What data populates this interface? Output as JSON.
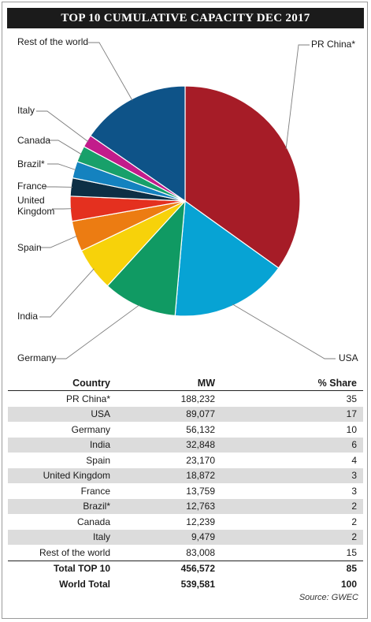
{
  "title": "TOP 10 CUMULATIVE CAPACITY DEC 2017",
  "chart_data": {
    "type": "pie",
    "title": "TOP 10 CUMULATIVE CAPACITY DEC 2017",
    "unit": "MW",
    "slices": [
      {
        "label": "PR China*",
        "value": 188232,
        "color": "#a61c27"
      },
      {
        "label": "USA",
        "value": 89077,
        "color": "#07a3d4"
      },
      {
        "label": "Germany",
        "value": 56132,
        "color": "#109a63"
      },
      {
        "label": "India",
        "value": 32848,
        "color": "#f7d20a"
      },
      {
        "label": "Spain",
        "value": 23170,
        "color": "#ec7c12"
      },
      {
        "label": "United Kingdom",
        "value": 18872,
        "color": "#e4301f"
      },
      {
        "label": "France",
        "value": 13759,
        "color": "#0d2f45"
      },
      {
        "label": "Brazil*",
        "value": 12763,
        "color": "#1482bf"
      },
      {
        "label": "Canada",
        "value": 12239,
        "color": "#18a06a"
      },
      {
        "label": "Italy",
        "value": 9479,
        "color": "#c21c8b"
      },
      {
        "label": "Rest of the world",
        "value": 83008,
        "color": "#0e5388"
      }
    ]
  },
  "table": {
    "headers": [
      "Country",
      "MW",
      "% Share"
    ],
    "rows": [
      [
        "PR China*",
        "188,232",
        "35"
      ],
      [
        "USA",
        "89,077",
        "17"
      ],
      [
        "Germany",
        "56,132",
        "10"
      ],
      [
        "India",
        "32,848",
        "6"
      ],
      [
        "Spain",
        "23,170",
        "4"
      ],
      [
        "United Kingdom",
        "18,872",
        "3"
      ],
      [
        "France",
        "13,759",
        "3"
      ],
      [
        "Brazil*",
        "12,763",
        "2"
      ],
      [
        "Canada",
        "12,239",
        "2"
      ],
      [
        "Italy",
        "9,479",
        "2"
      ],
      [
        "Rest of the world",
        "83,008",
        "15"
      ]
    ],
    "totals": [
      [
        "Total TOP 10",
        "456,572",
        "85"
      ],
      [
        "World Total",
        "539,581",
        "100"
      ]
    ]
  },
  "source": "Source: GWEC"
}
